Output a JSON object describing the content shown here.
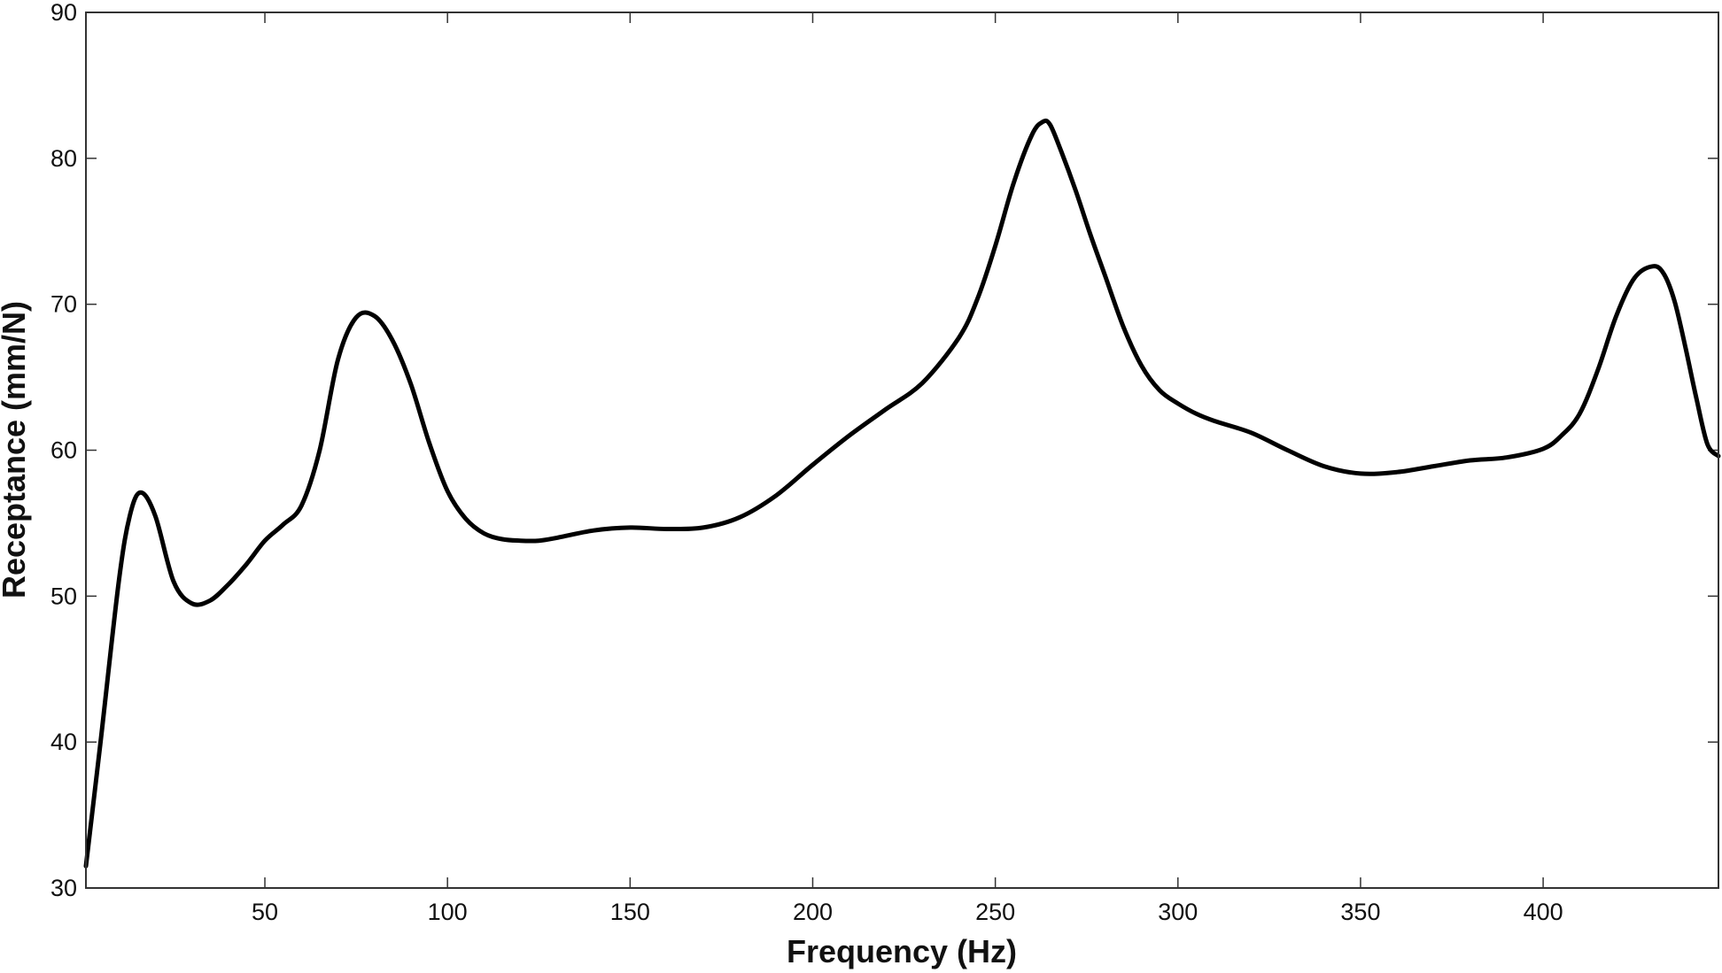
{
  "chart_data": {
    "type": "line",
    "title": "",
    "xlabel": "Frequency (Hz)",
    "ylabel": "Receptance (mm/N)",
    "xlim": [
      1,
      448
    ],
    "ylim": [
      30,
      90
    ],
    "x_ticks": [
      50,
      100,
      150,
      200,
      250,
      300,
      350,
      400
    ],
    "y_ticks": [
      30,
      40,
      50,
      60,
      70,
      80,
      90
    ],
    "grid": false,
    "legend": "none",
    "line_color": "#000000",
    "series": [
      {
        "x": [
          1,
          5,
          10,
          13,
          16,
          20,
          25,
          30,
          35,
          40,
          45,
          50,
          55,
          60,
          65,
          70,
          75,
          80,
          85,
          90,
          95,
          100,
          105,
          110,
          115,
          120,
          125,
          130,
          140,
          150,
          160,
          170,
          180,
          190,
          200,
          210,
          220,
          230,
          240,
          245,
          250,
          255,
          260,
          263,
          265,
          268,
          272,
          276,
          280,
          285,
          290,
          295,
          300,
          305,
          310,
          320,
          330,
          340,
          350,
          360,
          370,
          380,
          390,
          400,
          405,
          410,
          415,
          420,
          425,
          430,
          433,
          436,
          439,
          442,
          445,
          448
        ],
        "y": [
          31.5,
          40,
          51,
          55.5,
          57.1,
          55.5,
          51,
          49.5,
          49.7,
          50.8,
          52.2,
          53.8,
          54.9,
          56.2,
          60,
          66.2,
          69.1,
          69.2,
          67.5,
          64.5,
          60.5,
          57.2,
          55.3,
          54.3,
          53.9,
          53.8,
          53.8,
          54,
          54.5,
          54.7,
          54.6,
          54.7,
          55.4,
          56.9,
          59,
          61,
          62.8,
          64.6,
          67.7,
          70.3,
          74,
          78.3,
          81.6,
          82.5,
          82.3,
          80.5,
          77.8,
          74.8,
          72,
          68.5,
          65.8,
          64.1,
          63.2,
          62.5,
          62,
          61.2,
          60,
          58.9,
          58.4,
          58.5,
          58.9,
          59.3,
          59.5,
          60.1,
          61,
          62.5,
          65.5,
          69.2,
          71.8,
          72.6,
          72.1,
          70.2,
          67,
          63.5,
          60.4,
          59.6
        ]
      }
    ]
  }
}
